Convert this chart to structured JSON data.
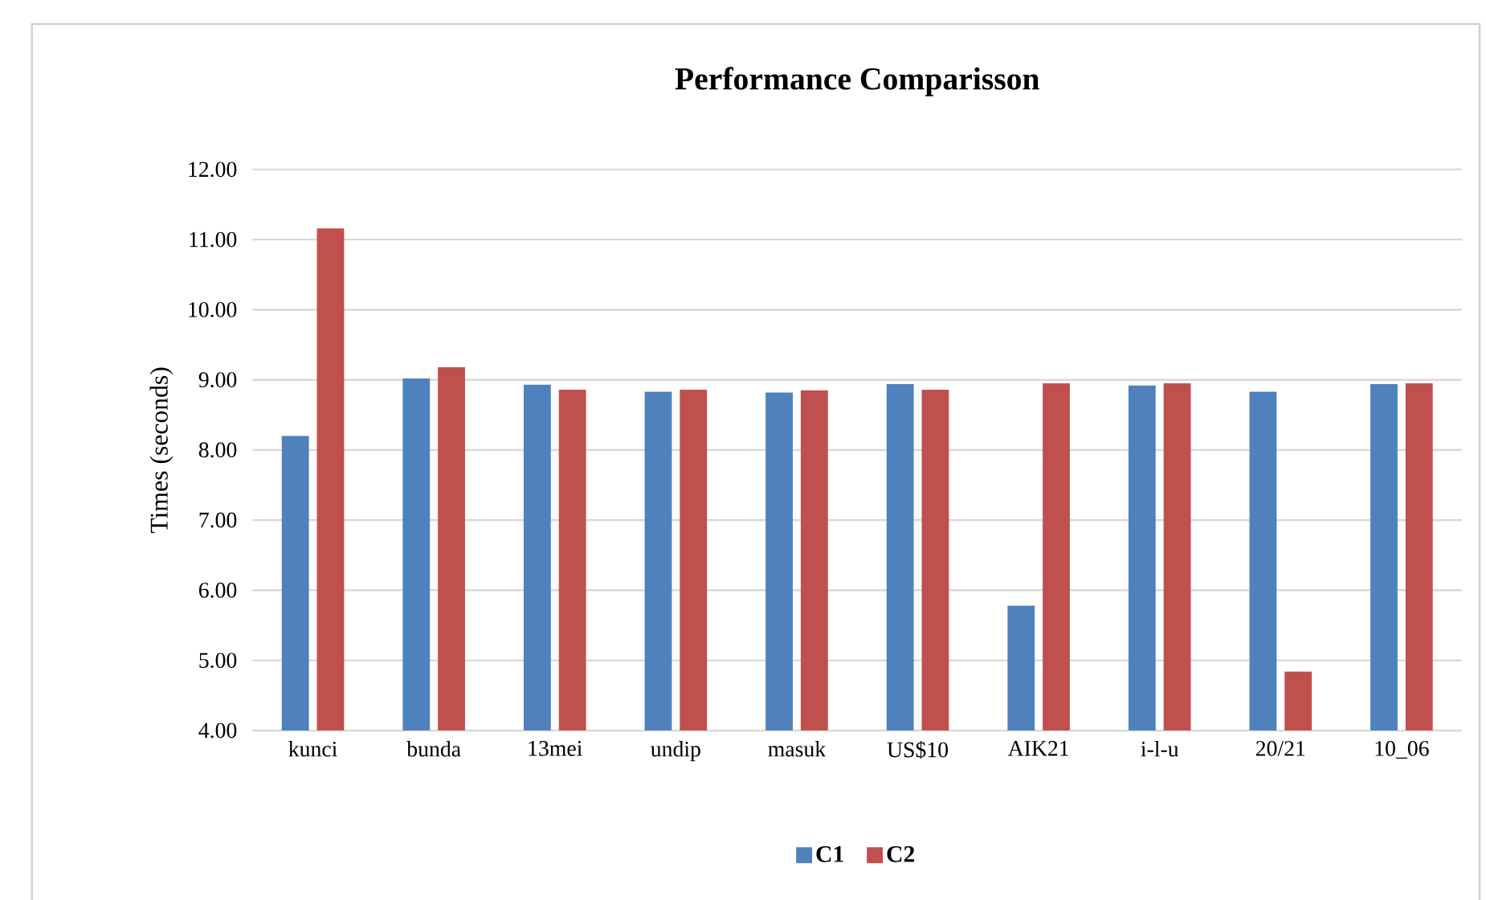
{
  "chart_data": {
    "type": "bar",
    "title": "Performance Comparisson",
    "ylabel": "Times (seconds)",
    "categories": [
      "kunci",
      "bunda",
      "13mei",
      "undip",
      "masuk",
      "US$10",
      "AIK21",
      "i-l-u",
      "20/21",
      "10_06"
    ],
    "series": [
      {
        "name": "C1",
        "color": "#4f81bd",
        "values": [
          8.2,
          9.02,
          8.93,
          8.83,
          8.82,
          8.94,
          5.78,
          8.92,
          8.83,
          8.94
        ]
      },
      {
        "name": "C2",
        "color": "#c0504d",
        "values": [
          11.16,
          9.18,
          8.86,
          8.86,
          8.85,
          8.86,
          8.95,
          8.95,
          4.84,
          8.95
        ]
      }
    ],
    "ylim": [
      4,
      12
    ],
    "yticks": [
      {
        "value": 4,
        "label": "4.00"
      },
      {
        "value": 5,
        "label": "5.00"
      },
      {
        "value": 6,
        "label": "6.00"
      },
      {
        "value": 7,
        "label": "7.00"
      },
      {
        "value": 8,
        "label": "8.00"
      },
      {
        "value": 9,
        "label": "9.00"
      },
      {
        "value": 10,
        "label": "10.00"
      },
      {
        "value": 11,
        "label": "11.00"
      },
      {
        "value": 12,
        "label": "12.00"
      }
    ],
    "grid": "y",
    "legend": "bottom"
  }
}
